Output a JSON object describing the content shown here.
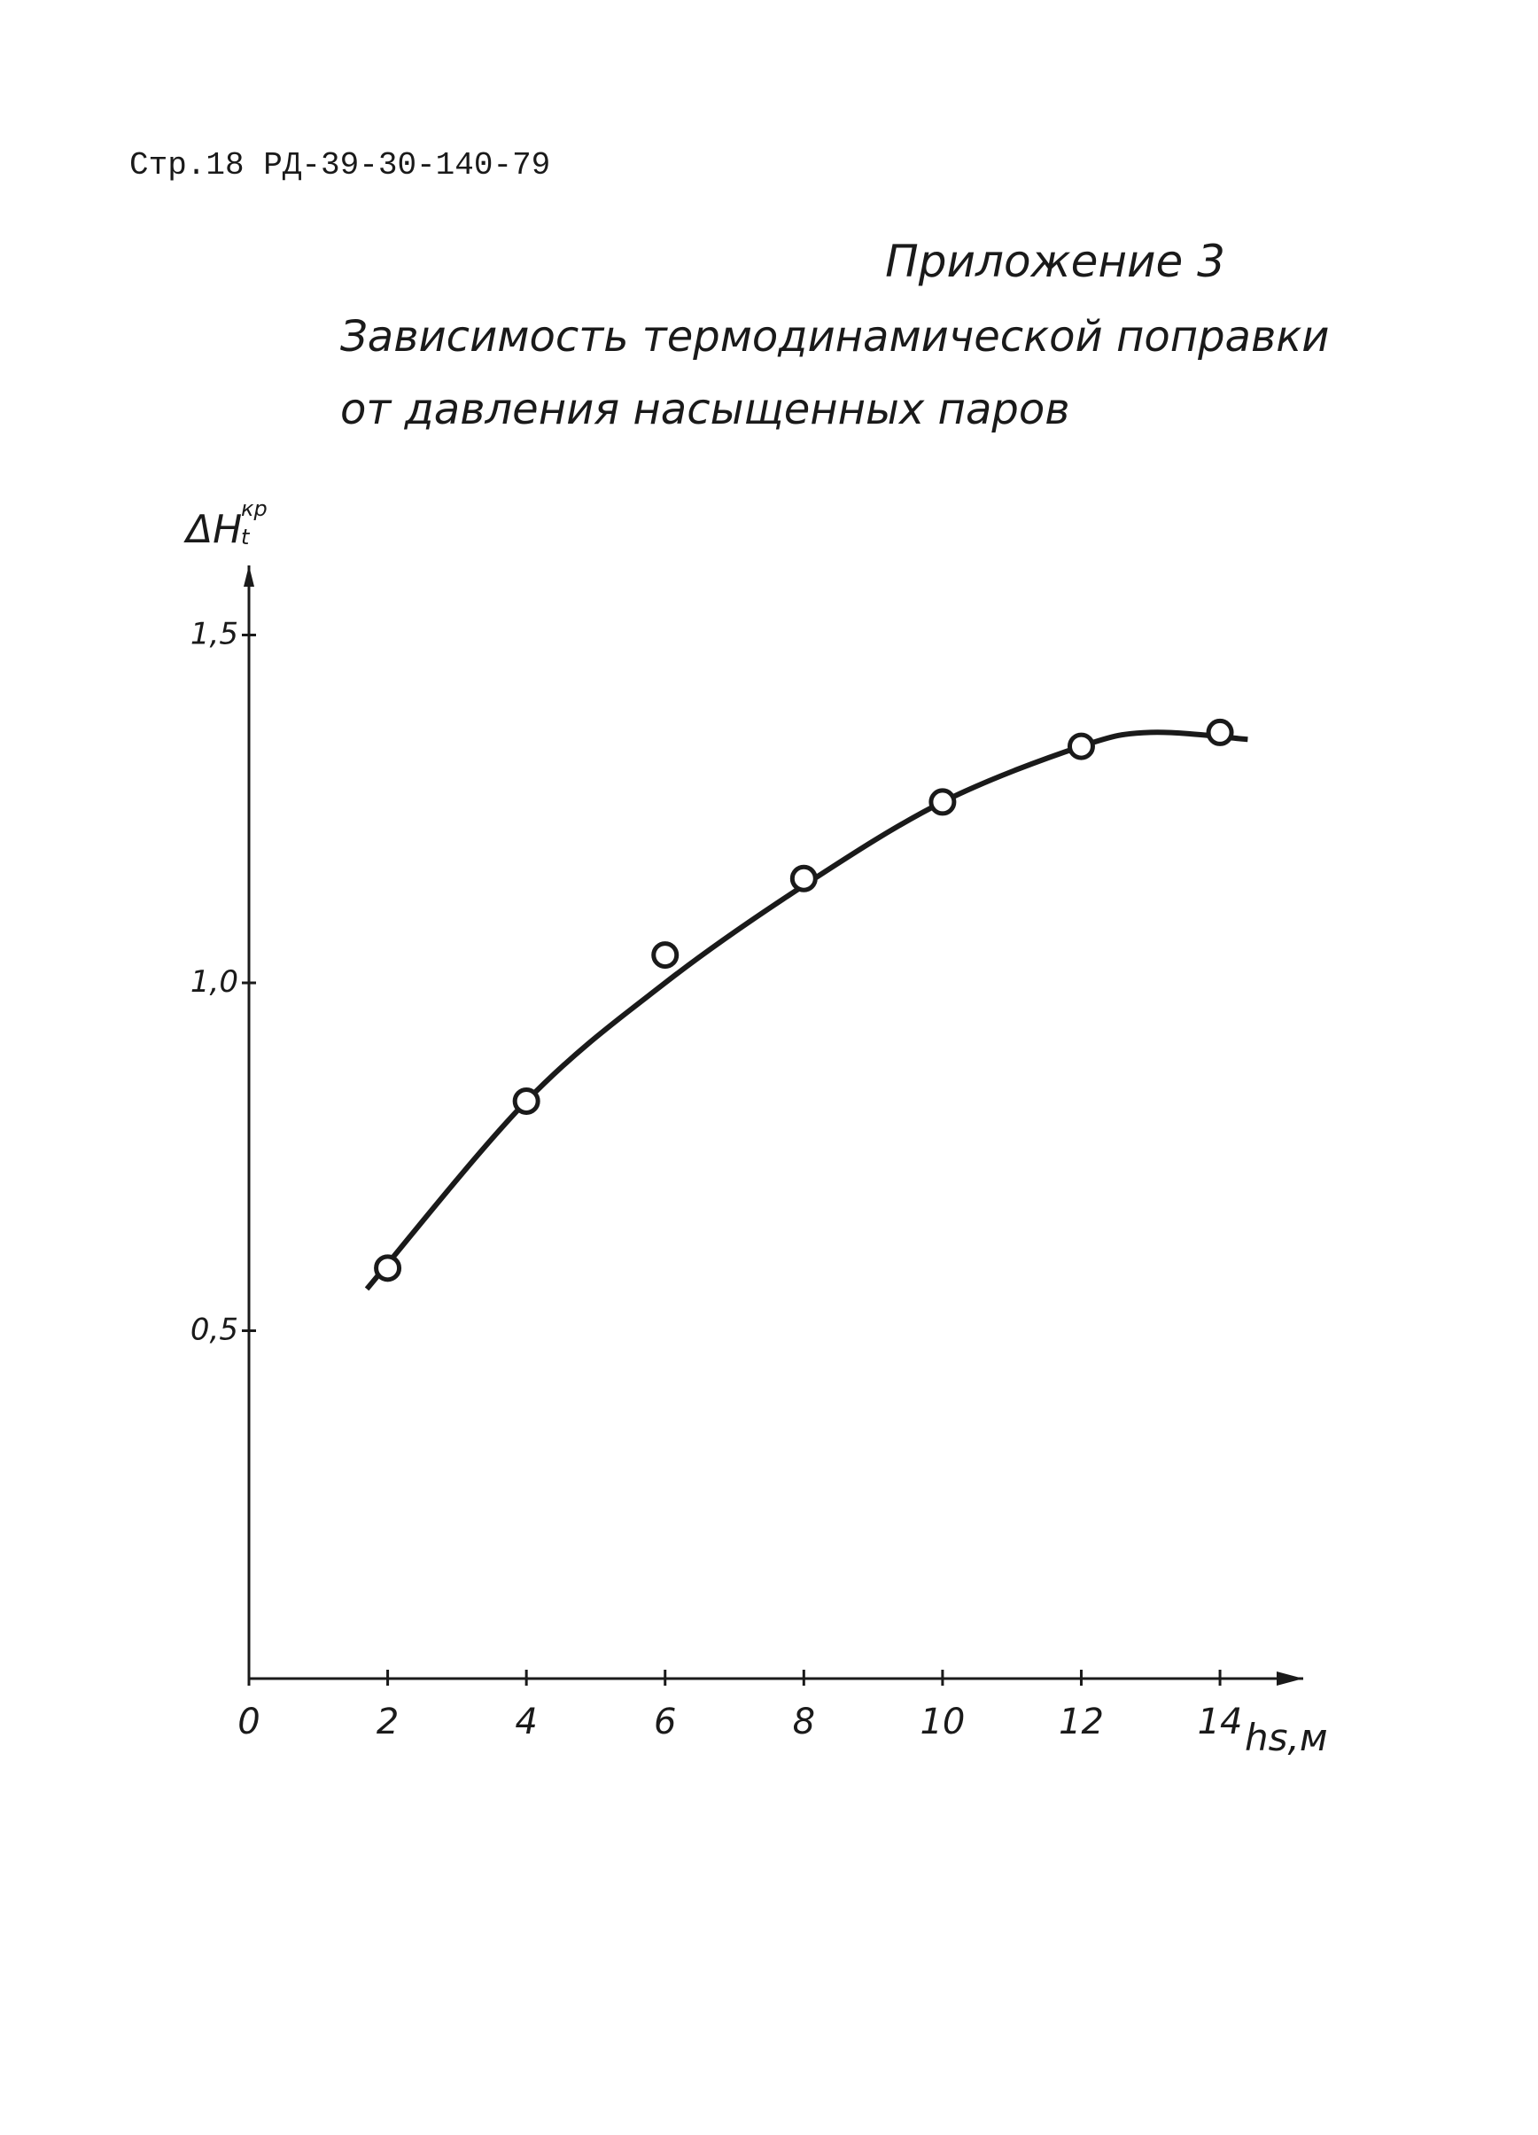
{
  "header": "Стр.18 РД-39-30-140-79",
  "appendix": "Приложение 3",
  "chart_data": {
    "type": "scatter",
    "title": [
      "Зависимость термодинамической поправки",
      "от давления насыщенных паров"
    ],
    "ylabel": "ΔH",
    "ylabel_sup": "кр",
    "ylabel_sub": "t",
    "xlabel": "hs,м",
    "x": [
      2,
      4,
      6,
      8,
      10,
      12,
      14
    ],
    "values": [
      0.59,
      0.83,
      1.04,
      1.15,
      1.26,
      1.34,
      1.36
    ],
    "curve": {
      "x": [
        1.7,
        4,
        6,
        8,
        10,
        12,
        13,
        14.4
      ],
      "values": [
        0.56,
        0.83,
        1.0,
        1.14,
        1.26,
        1.34,
        1.36,
        1.35
      ]
    },
    "color": "#1a1a1a",
    "xlim": [
      0,
      15.2
    ],
    "ylim": [
      0,
      1.6
    ],
    "xticks": [
      0,
      2,
      4,
      6,
      8,
      10,
      12,
      14
    ],
    "yticks": [
      {
        "value": 0.5,
        "label": "0,5"
      },
      {
        "value": 1.0,
        "label": "1,0"
      },
      {
        "value": 1.5,
        "label": "1,5"
      }
    ]
  }
}
